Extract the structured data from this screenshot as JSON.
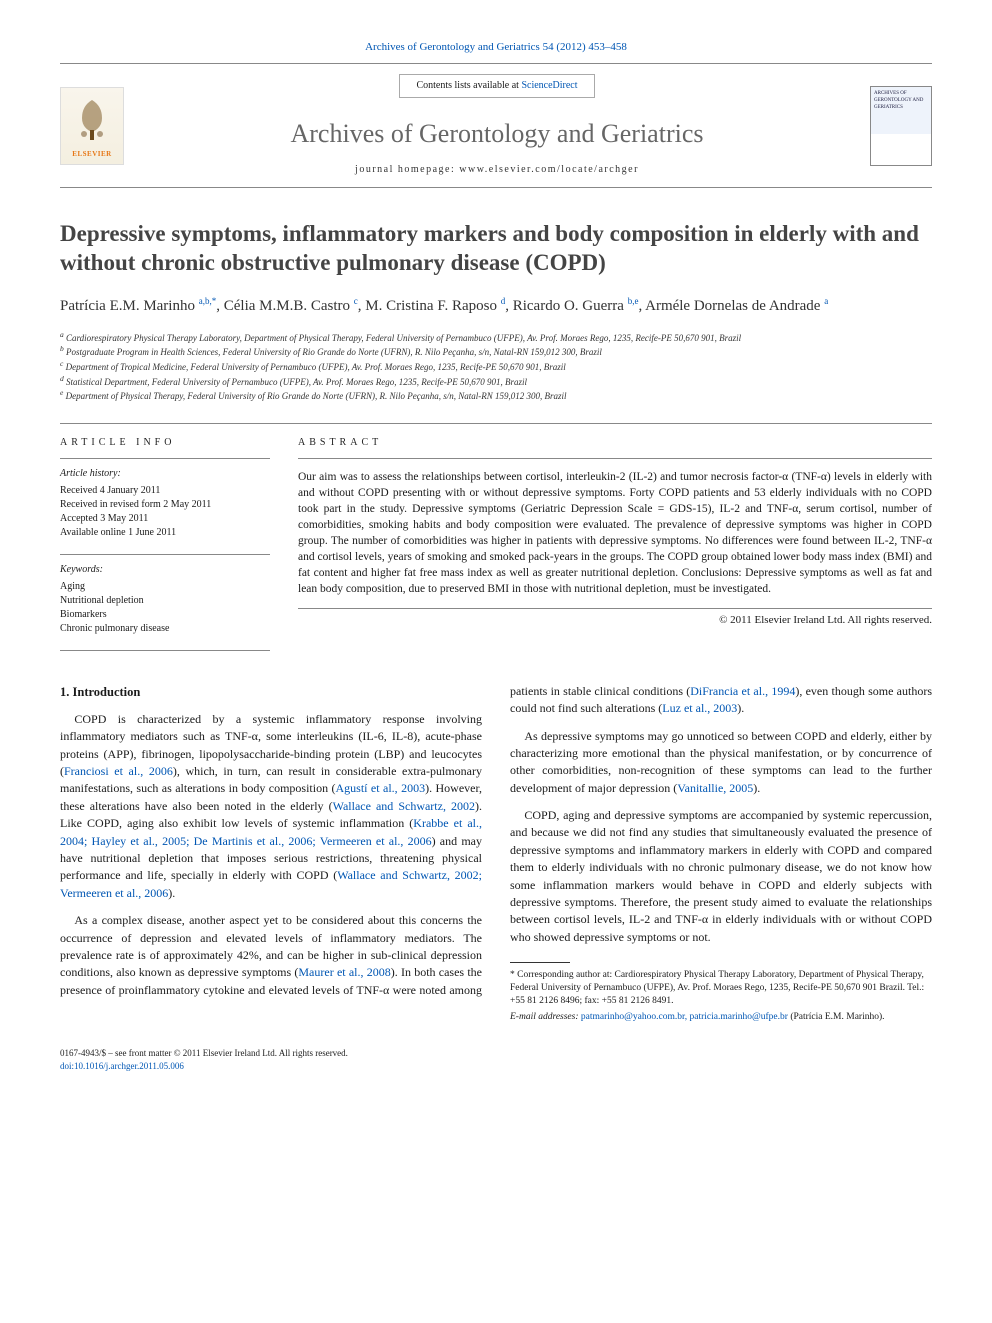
{
  "citation": {
    "journal": "Archives of Gerontology and Geriatrics",
    "volume_issue": "54 (2012) 453–458"
  },
  "masthead": {
    "contents_prefix": "Contents lists available at ",
    "contents_link_text": "ScienceDirect",
    "journal_name": "Archives of Gerontology and Geriatrics",
    "homepage_prefix": "journal homepage: ",
    "homepage_url": "www.elsevier.com/locate/archger",
    "elsevier_label": "ELSEVIER",
    "cover_title": "ARCHIVES OF GERONTOLOGY AND GERIATRICS"
  },
  "title": "Depressive symptoms, inflammatory markers and body composition in elderly with and without chronic obstructive pulmonary disease (COPD)",
  "authors_html": "Patrícia E.M. Marinho <sup>a,b,*</sup>, Célia M.M.B. Castro <sup>c</sup>, M. Cristina F. Raposo <sup>d</sup>, Ricardo O. Guerra <sup>b,e</sup>, Arméle Dornelas de Andrade <sup>a</sup>",
  "affiliations": [
    "a Cardiorespiratory Physical Therapy Laboratory, Department of Physical Therapy, Federal University of Pernambuco (UFPE), Av. Prof. Moraes Rego, 1235, Recife-PE 50,670 901, Brazil",
    "b Postgraduate Program in Health Sciences, Federal University of Rio Grande do Norte (UFRN), R. Nilo Peçanha, s/n, Natal-RN 159,012 300, Brazil",
    "c Department of Tropical Medicine, Federal University of Pernambuco (UFPE), Av. Prof. Moraes Rego, 1235, Recife-PE 50,670 901, Brazil",
    "d Statistical Department, Federal University of Pernambuco (UFPE), Av. Prof. Moraes Rego, 1235, Recife-PE 50,670 901, Brazil",
    "e Department of Physical Therapy, Federal University of Rio Grande do Norte (UFRN), R. Nilo Peçanha, s/n, Natal-RN 159,012 300, Brazil"
  ],
  "article_info": {
    "heading_info": "ARTICLE INFO",
    "history_label": "Article history:",
    "history": [
      "Received 4 January 2011",
      "Received in revised form 2 May 2011",
      "Accepted 3 May 2011",
      "Available online 1 June 2011"
    ],
    "keywords_label": "Keywords:",
    "keywords": [
      "Aging",
      "Nutritional depletion",
      "Biomarkers",
      "Chronic pulmonary disease"
    ]
  },
  "abstract": {
    "heading": "ABSTRACT",
    "text": "Our aim was to assess the relationships between cortisol, interleukin-2 (IL-2) and tumor necrosis factor-α (TNF-α) levels in elderly with and without COPD presenting with or without depressive symptoms. Forty COPD patients and 53 elderly individuals with no COPD took part in the study. Depressive symptoms (Geriatric Depression Scale = GDS-15), IL-2 and TNF-α, serum cortisol, number of comorbidities, smoking habits and body composition were evaluated. The prevalence of depressive symptoms was higher in COPD group. The number of comorbidities was higher in patients with depressive symptoms. No differences were found between IL-2, TNF-α and cortisol levels, years of smoking and smoked pack-years in the groups. The COPD group obtained lower body mass index (BMI) and fat content and higher fat free mass index as well as greater nutritional depletion. Conclusions: Depressive symptoms as well as fat and lean body composition, due to preserved BMI in those with nutritional depletion, must be investigated.",
    "copyright": "© 2011 Elsevier Ireland Ltd. All rights reserved."
  },
  "section_heading": "1. Introduction",
  "paragraphs": [
    "COPD is characterized by a systemic inflammatory response involving inflammatory mediators such as TNF-α, some interleukins (IL-6, IL-8), acute-phase proteins (APP), fibrinogen, lipopolysaccharide-binding protein (LBP) and leucocytes (Franciosi et al., 2006), which, in turn, can result in considerable extra-pulmonary manifestations, such as alterations in body composition (Agustí et al., 2003). However, these alterations have also been noted in the elderly (Wallace and Schwartz, 2002). Like COPD, aging also exhibit low levels of systemic inflammation (Krabbe et al., 2004; Hayley et al., 2005; De Martinis et al., 2006; Vermeeren et al., 2006) and may have nutritional depletion that imposes serious restrictions, threatening physical performance and life, specially in elderly with COPD (Wallace and Schwartz, 2002; Vermeeren et al., 2006).",
    "As a complex disease, another aspect yet to be considered about this concerns the occurrence of depression and elevated levels of inflammatory mediators. The prevalence rate is of approximately 42%, and can be higher in sub-clinical depression conditions, also known as depressive symptoms (Maurer et al., 2008). In both cases the presence of proinflammatory cytokine and elevated levels of TNF-α were noted among patients in stable clinical conditions (DiFrancia et al., 1994), even though some authors could not find such alterations (Luz et al., 2003).",
    "As depressive symptoms may go unnoticed so between COPD and elderly, either by characterizing more emotional than the physical manifestation, or by concurrence of other comorbidities, non-recognition of these symptoms can lead to the further development of major depression (Vanitallie, 2005).",
    "COPD, aging and depressive symptoms are accompanied by systemic repercussion, and because we did not find any studies that simultaneously evaluated the presence of depressive symptoms and inflammatory markers in elderly with COPD and compared them to elderly individuals with no chronic pulmonary disease, we do not know how some inflammation markers would behave in COPD and elderly subjects with depressive symptoms. Therefore, the present study aimed to evaluate the relationships between cortisol levels, IL-2 and TNF-α in elderly individuals with or without COPD who showed depressive symptoms or not."
  ],
  "refs": [
    "Franciosi et al., 2006",
    "Agustí et al., 2003",
    "Wallace and Schwartz, 2002",
    "Krabbe et al., 2004; Hayley et al., 2005; De Martinis et al., 2006; Vermeeren et al., 2006",
    "Wallace and Schwartz, 2002; Vermeeren et al., 2006",
    "Maurer et al., 2008",
    "DiFrancia et al., 1994",
    "Luz et al., 2003",
    "Vanitallie, 2005"
  ],
  "footnote": {
    "corresponding": "* Corresponding author at: Cardiorespiratory Physical Therapy Laboratory, Department of Physical Therapy, Federal University of Pernambuco (UFPE), Av. Prof. Moraes Rego, 1235, Recife-PE 50,670 901 Brazil. Tel.: +55 81 2126 8496; fax: +55 81 2126 8491.",
    "email_label": "E-mail addresses:",
    "emails": "patmarinho@yahoo.com.br, patricia.marinho@ufpe.br",
    "email_name": "(Patrícia E.M. Marinho)."
  },
  "bottom": {
    "issn_line": "0167-4943/$ – see front matter © 2011 Elsevier Ireland Ltd. All rights reserved.",
    "doi_line": "doi:10.1016/j.archger.2011.05.006"
  },
  "colors": {
    "link": "#0056b3",
    "journal_grey": "#666666",
    "rule": "#888888",
    "elsevier_orange": "#e67817"
  }
}
